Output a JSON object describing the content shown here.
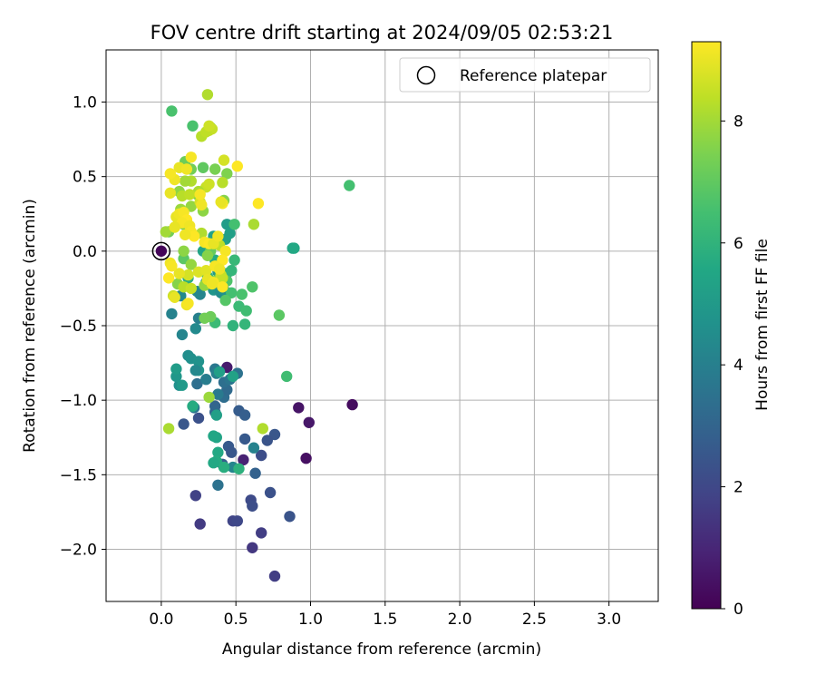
{
  "chart_data": {
    "type": "scatter",
    "title": "FOV centre drift starting at 2024/09/05 02:53:21",
    "xlabel": "Angular distance from reference (arcmin)",
    "ylabel": "Rotation from reference (arcmin)",
    "xlim": [
      -0.37,
      3.33
    ],
    "ylim": [
      -2.35,
      1.35
    ],
    "xticks": [
      0.0,
      0.5,
      1.0,
      1.5,
      2.0,
      2.5,
      3.0
    ],
    "xtick_labels": [
      "0.0",
      "0.5",
      "1.0",
      "1.5",
      "2.0",
      "2.5",
      "3.0"
    ],
    "yticks": [
      -2.0,
      -1.5,
      -1.0,
      -0.5,
      0.0,
      0.5,
      1.0
    ],
    "ytick_labels": [
      "−2.0",
      "−1.5",
      "−1.0",
      "−0.5",
      "0.0",
      "0.5",
      "1.0"
    ],
    "grid": true,
    "colormap": "viridis",
    "colorbar": {
      "label": "Hours from first FF file",
      "range": [
        0,
        9.3
      ],
      "ticks": [
        0,
        2,
        4,
        6,
        8
      ],
      "tick_labels": [
        "0",
        "2",
        "4",
        "6",
        "8"
      ]
    },
    "legend": {
      "placement": "top-right",
      "entries": [
        {
          "label": "Reference platepar",
          "marker": "open-circle",
          "x": 0.0,
          "y": 0.0
        }
      ]
    },
    "points": [
      [
        0.0,
        0.0,
        0.1
      ],
      [
        1.28,
        -1.03,
        0.3
      ],
      [
        0.92,
        -1.05,
        0.5
      ],
      [
        0.99,
        -1.15,
        0.6
      ],
      [
        0.97,
        -1.39,
        0.4
      ],
      [
        0.44,
        -0.78,
        0.7
      ],
      [
        0.55,
        -1.4,
        0.9
      ],
      [
        0.61,
        -1.99,
        1.5
      ],
      [
        0.76,
        -2.18,
        1.7
      ],
      [
        0.26,
        -1.83,
        1.6
      ],
      [
        0.23,
        -1.64,
        1.8
      ],
      [
        0.48,
        -1.81,
        1.9
      ],
      [
        0.51,
        -1.81,
        2.0
      ],
      [
        0.6,
        -1.67,
        2.1
      ],
      [
        0.61,
        -1.71,
        2.2
      ],
      [
        0.67,
        -1.89,
        1.7
      ],
      [
        0.73,
        -1.62,
        2.3
      ],
      [
        0.86,
        -1.78,
        2.4
      ],
      [
        0.76,
        -1.23,
        2.5
      ],
      [
        0.71,
        -1.27,
        2.4
      ],
      [
        0.67,
        -1.37,
        2.2
      ],
      [
        0.56,
        -1.26,
        2.6
      ],
      [
        0.52,
        -1.07,
        2.7
      ],
      [
        0.56,
        -1.1,
        2.8
      ],
      [
        0.63,
        -1.49,
        2.9
      ],
      [
        0.45,
        -1.31,
        2.6
      ],
      [
        0.47,
        -1.35,
        2.5
      ],
      [
        0.41,
        -1.43,
        2.8
      ],
      [
        0.25,
        -1.12,
        2.3
      ],
      [
        0.15,
        -1.16,
        2.5
      ],
      [
        0.36,
        -1.04,
        3.0
      ],
      [
        0.36,
        -1.08,
        3.1
      ],
      [
        0.42,
        -0.98,
        3.3
      ],
      [
        0.44,
        -0.93,
        3.2
      ],
      [
        0.42,
        -0.88,
        3.4
      ],
      [
        0.51,
        -0.82,
        3.5
      ],
      [
        0.46,
        -0.86,
        3.6
      ],
      [
        0.36,
        -0.79,
        3.7
      ],
      [
        0.24,
        -0.89,
        3.4
      ],
      [
        0.3,
        -0.86,
        3.9
      ],
      [
        0.38,
        -0.96,
        3.8
      ],
      [
        0.22,
        -1.05,
        3.6
      ],
      [
        0.37,
        -0.82,
        4.0
      ],
      [
        0.38,
        -1.57,
        3.5
      ],
      [
        0.62,
        -1.32,
        4.1
      ],
      [
        0.48,
        -1.45,
        4.2
      ],
      [
        0.25,
        -0.45,
        4.0
      ],
      [
        0.07,
        -0.42,
        4.1
      ],
      [
        0.14,
        -0.56,
        4.2
      ],
      [
        0.23,
        -0.52,
        4.4
      ],
      [
        0.18,
        -0.7,
        4.5
      ],
      [
        0.2,
        -0.72,
        4.6
      ],
      [
        0.25,
        -0.74,
        4.7
      ],
      [
        0.25,
        -0.8,
        4.8
      ],
      [
        0.23,
        -0.8,
        4.3
      ],
      [
        0.12,
        -0.9,
        4.6
      ],
      [
        0.1,
        -0.84,
        4.9
      ],
      [
        0.14,
        -0.9,
        5.0
      ],
      [
        0.1,
        -0.79,
        5.1
      ],
      [
        0.39,
        -0.81,
        5.2
      ],
      [
        0.48,
        -0.84,
        5.3
      ],
      [
        0.37,
        -1.1,
        5.2
      ],
      [
        0.37,
        -1.25,
        5.4
      ],
      [
        0.35,
        -1.24,
        5.5
      ],
      [
        0.38,
        -1.35,
        5.6
      ],
      [
        0.37,
        -1.41,
        5.7
      ],
      [
        0.35,
        -1.42,
        5.6
      ],
      [
        0.42,
        -1.45,
        5.8
      ],
      [
        0.52,
        -1.46,
        5.9
      ],
      [
        0.21,
        -1.04,
        5.7
      ],
      [
        0.24,
        -0.27,
        4.4
      ],
      [
        0.26,
        -0.29,
        4.2
      ],
      [
        0.3,
        -0.21,
        4.6
      ],
      [
        0.35,
        -0.26,
        4.8
      ],
      [
        0.4,
        -0.28,
        4.5
      ],
      [
        0.42,
        -0.26,
        4.7
      ],
      [
        0.13,
        -0.3,
        4.3
      ],
      [
        0.38,
        -0.14,
        5.0
      ],
      [
        0.44,
        0.18,
        5.1
      ],
      [
        0.46,
        0.12,
        5.2
      ],
      [
        0.88,
        0.02,
        5.5
      ],
      [
        0.89,
        0.02,
        5.6
      ],
      [
        0.35,
        0.1,
        5.3
      ],
      [
        0.28,
        0.0,
        5.4
      ],
      [
        0.43,
        0.08,
        5.2
      ],
      [
        0.36,
        -0.06,
        5.7
      ],
      [
        0.18,
        -0.18,
        5.8
      ],
      [
        0.31,
        -0.17,
        5.9
      ],
      [
        0.44,
        -0.15,
        6.0
      ],
      [
        0.47,
        -0.13,
        6.1
      ],
      [
        0.49,
        -0.06,
        6.2
      ],
      [
        0.48,
        -0.5,
        6.0
      ],
      [
        0.56,
        -0.49,
        6.1
      ],
      [
        0.52,
        -0.37,
        6.3
      ],
      [
        0.57,
        -0.4,
        6.4
      ],
      [
        0.36,
        -0.48,
        6.3
      ],
      [
        0.47,
        -0.28,
        6.5
      ],
      [
        0.54,
        -0.29,
        6.6
      ],
      [
        0.61,
        -0.24,
        6.7
      ],
      [
        0.43,
        -0.33,
        6.8
      ],
      [
        0.79,
        -0.43,
        6.9
      ],
      [
        0.84,
        -0.84,
        6.4
      ],
      [
        0.49,
        0.18,
        6.5
      ],
      [
        0.44,
        -0.2,
        6.7
      ],
      [
        0.15,
        -0.05,
        6.9
      ],
      [
        0.15,
        0.18,
        7.1
      ],
      [
        1.26,
        0.44,
        6.5
      ],
      [
        0.07,
        0.94,
        6.6
      ],
      [
        0.21,
        0.84,
        6.6
      ],
      [
        0.28,
        0.56,
        7.0
      ],
      [
        0.33,
        0.83,
        6.8
      ],
      [
        0.16,
        0.6,
        7.2
      ],
      [
        0.2,
        0.55,
        7.3
      ],
      [
        0.36,
        0.55,
        7.4
      ],
      [
        0.44,
        0.52,
        7.5
      ],
      [
        0.42,
        0.34,
        7.6
      ],
      [
        0.28,
        0.27,
        7.7
      ],
      [
        0.2,
        0.3,
        7.8
      ],
      [
        0.11,
        0.22,
        7.4
      ],
      [
        0.05,
        0.13,
        7.3
      ],
      [
        0.13,
        0.28,
        7.9
      ],
      [
        0.24,
        0.38,
        7.5
      ],
      [
        0.12,
        0.4,
        7.7
      ],
      [
        0.03,
        0.13,
        8.0
      ],
      [
        0.33,
        0.0,
        7.1
      ],
      [
        0.33,
        -0.44,
        7.2
      ],
      [
        0.29,
        -0.45,
        7.3
      ],
      [
        0.36,
        -0.2,
        7.5
      ],
      [
        0.31,
        -0.03,
        7.6
      ],
      [
        0.15,
        0.0,
        7.7
      ],
      [
        0.2,
        -0.09,
        7.8
      ],
      [
        0.29,
        -0.23,
        7.8
      ],
      [
        0.11,
        -0.22,
        7.6
      ],
      [
        0.32,
        -0.98,
        7.9
      ],
      [
        0.05,
        -1.19,
        8.1
      ],
      [
        0.68,
        -1.19,
        8.2
      ],
      [
        0.62,
        0.18,
        8.1
      ],
      [
        0.31,
        1.05,
        8.2
      ],
      [
        0.27,
        0.77,
        8.3
      ],
      [
        0.32,
        0.81,
        8.4
      ],
      [
        0.34,
        0.82,
        8.5
      ],
      [
        0.3,
        0.8,
        8.4
      ],
      [
        0.32,
        0.84,
        8.6
      ],
      [
        0.41,
        0.46,
        8.3
      ],
      [
        0.42,
        0.61,
        8.7
      ],
      [
        0.3,
        0.43,
        8.5
      ],
      [
        0.32,
        0.45,
        8.6
      ],
      [
        0.2,
        0.47,
        8.2
      ],
      [
        0.16,
        0.47,
        8.0
      ],
      [
        0.25,
        0.4,
        8.1
      ],
      [
        0.14,
        0.37,
        8.3
      ],
      [
        0.19,
        0.38,
        8.4
      ],
      [
        0.26,
        0.33,
        8.7
      ],
      [
        0.27,
        0.12,
        8.2
      ],
      [
        0.39,
        0.04,
        8.4
      ],
      [
        0.4,
        -0.16,
        8.6
      ],
      [
        0.41,
        -0.18,
        8.5
      ],
      [
        0.15,
        -0.24,
        8.3
      ],
      [
        0.2,
        -0.25,
        8.5
      ],
      [
        0.08,
        -0.3,
        8.6
      ],
      [
        0.18,
        -0.16,
        8.7
      ],
      [
        0.25,
        -0.14,
        8.8
      ],
      [
        0.3,
        -0.13,
        8.9
      ],
      [
        0.12,
        -0.15,
        9.0
      ],
      [
        0.12,
        0.56,
        9.0
      ],
      [
        0.09,
        0.48,
        9.1
      ],
      [
        0.06,
        0.52,
        9.2
      ],
      [
        0.06,
        0.39,
        9.0
      ],
      [
        0.17,
        0.55,
        9.1
      ],
      [
        0.2,
        0.63,
        9.2
      ],
      [
        0.26,
        0.38,
        9.2
      ],
      [
        0.27,
        0.31,
        9.1
      ],
      [
        0.1,
        0.23,
        9.0
      ],
      [
        0.12,
        0.25,
        9.1
      ],
      [
        0.15,
        0.26,
        9.2
      ],
      [
        0.17,
        0.21,
        9.3
      ],
      [
        0.14,
        0.19,
        9.2
      ],
      [
        0.19,
        0.17,
        9.1
      ],
      [
        0.09,
        0.16,
        9.0
      ],
      [
        0.2,
        0.13,
        9.2
      ],
      [
        0.22,
        0.1,
        9.3
      ],
      [
        0.16,
        0.11,
        9.1
      ],
      [
        0.29,
        0.06,
        9.2
      ],
      [
        0.32,
        0.05,
        9.3
      ],
      [
        0.35,
        0.05,
        9.0
      ],
      [
        0.38,
        0.1,
        9.1
      ],
      [
        0.43,
        0.0,
        9.2
      ],
      [
        0.41,
        -0.06,
        9.3
      ],
      [
        0.36,
        -0.1,
        9.2
      ],
      [
        0.39,
        -0.12,
        9.1
      ],
      [
        0.31,
        -0.19,
        9.0
      ],
      [
        0.35,
        -0.21,
        9.2
      ],
      [
        0.41,
        -0.24,
        9.3
      ],
      [
        0.06,
        -0.08,
        9.1
      ],
      [
        0.07,
        -0.1,
        9.2
      ],
      [
        0.05,
        -0.18,
        9.3
      ],
      [
        0.09,
        -0.31,
        9.0
      ],
      [
        0.17,
        -0.36,
        9.1
      ],
      [
        0.18,
        -0.35,
        9.2
      ],
      [
        0.41,
        0.32,
        9.2
      ],
      [
        0.51,
        0.57,
        9.3
      ],
      [
        0.65,
        0.32,
        9.3
      ],
      [
        0.4,
        0.33,
        9.0
      ],
      [
        0.34,
        -0.22,
        9.1
      ]
    ]
  }
}
